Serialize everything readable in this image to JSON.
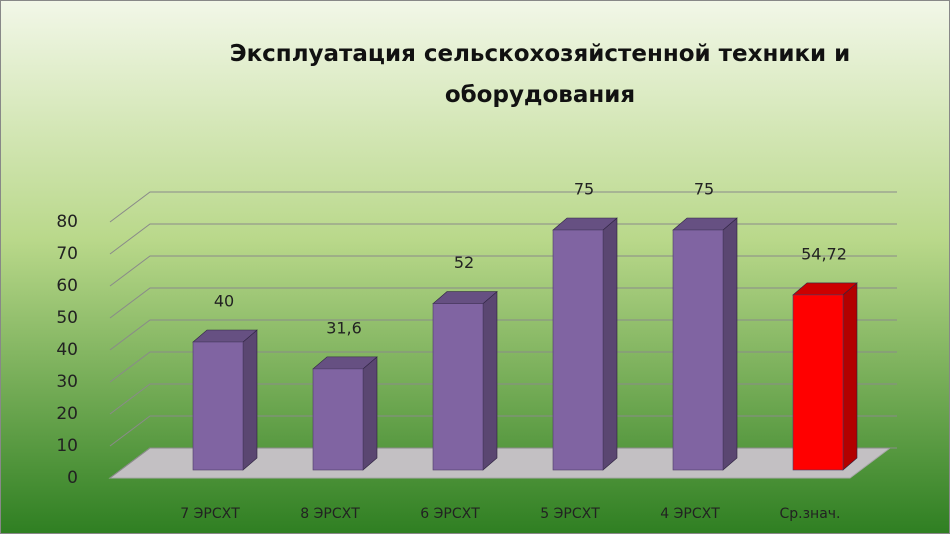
{
  "chart_data": {
    "type": "bar3d",
    "title": "Эксплуатация сельскохозяйстенной техники и оборудования",
    "categories": [
      "7 ЭРСХТ",
      "8 ЭРСХТ",
      "6 ЭРСХТ",
      "5 ЭРСХТ",
      "4 ЭРСХТ",
      "Ср.знач."
    ],
    "values": [
      40,
      31.6,
      52,
      75,
      75,
      54.72
    ],
    "value_labels": [
      "40",
      "31,6",
      "52",
      "75",
      "75",
      "54,72"
    ],
    "colors": [
      "#8064a2",
      "#8064a2",
      "#8064a2",
      "#8064a2",
      "#8064a2",
      "#ff0000"
    ],
    "ylim": [
      0,
      80
    ],
    "yticks": [
      0,
      10,
      20,
      30,
      40,
      50,
      60,
      70,
      80
    ],
    "grid": true
  }
}
